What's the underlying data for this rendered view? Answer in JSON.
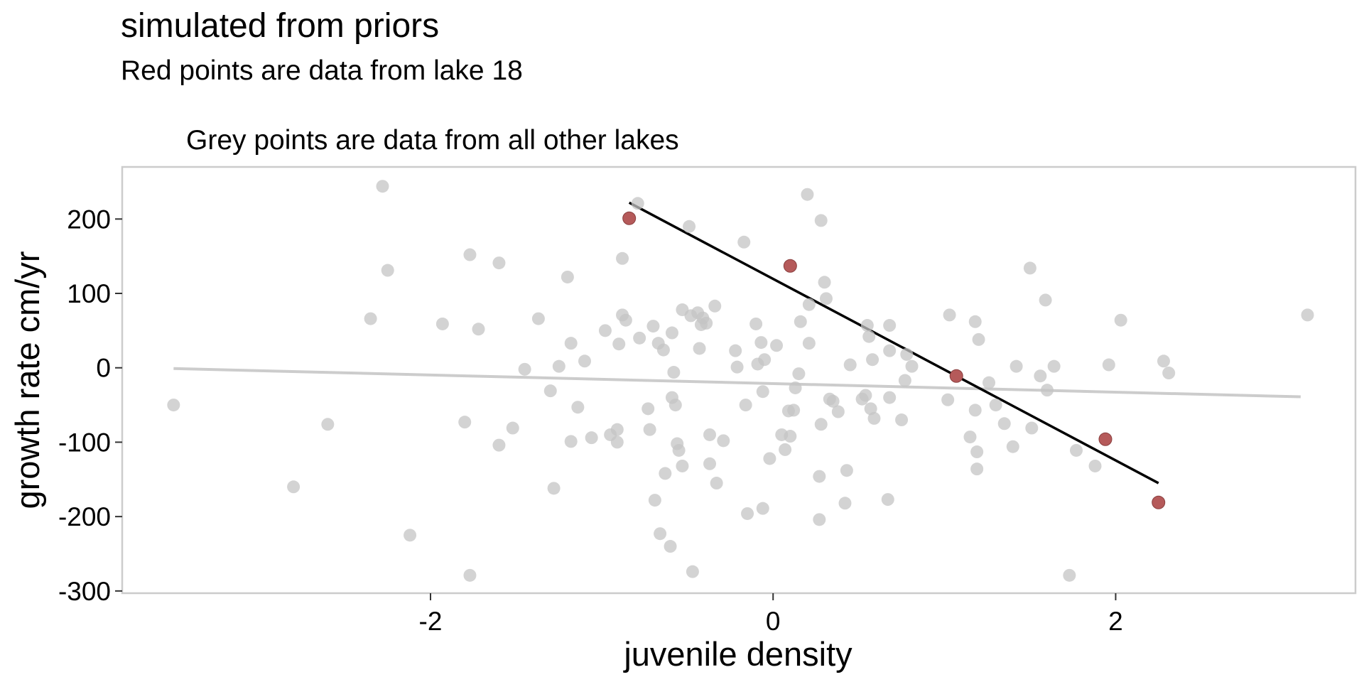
{
  "chart_data": {
    "type": "scatter",
    "title": "simulated from priors",
    "subtitle": "Red points are data from lake 18",
    "inner_title": "Grey points are data from all other lakes",
    "xlabel": "juvenile density",
    "ylabel": "growth rate cm/yr",
    "xlim": [
      -3.8,
      3.4
    ],
    "ylim": [
      -303,
      270
    ],
    "x_ticks": [
      -2,
      0,
      2
    ],
    "x_tick_labels": [
      "-2",
      "0",
      "2"
    ],
    "y_ticks": [
      -300,
      -200,
      -100,
      0,
      100,
      200
    ],
    "y_tick_labels": [
      "-300",
      "-200",
      "-100",
      "0",
      "100",
      "200"
    ],
    "grid": false,
    "legend": "none",
    "colors": {
      "grey_points": "#c4c4c4",
      "red_points": "#b55a5a",
      "lake18_line": "#000000",
      "other_line": "#cccccc",
      "frame": "#cccccc"
    },
    "series": [
      {
        "role": "other lakes",
        "points": [
          [
            -3.5,
            -50
          ],
          [
            -2.8,
            -160
          ],
          [
            -2.6,
            -76
          ],
          [
            -2.35,
            66
          ],
          [
            -2.25,
            131
          ],
          [
            -2.28,
            244
          ],
          [
            -2.12,
            -225
          ],
          [
            -1.93,
            59
          ],
          [
            -1.8,
            -73
          ],
          [
            -1.77,
            152
          ],
          [
            -1.77,
            -279
          ],
          [
            -1.72,
            52
          ],
          [
            -1.6,
            141
          ],
          [
            -1.6,
            -104
          ],
          [
            -1.52,
            -81
          ],
          [
            -1.45,
            -2
          ],
          [
            -1.37,
            66
          ],
          [
            -1.3,
            -31
          ],
          [
            -1.28,
            -162
          ],
          [
            -1.25,
            2
          ],
          [
            -1.2,
            122
          ],
          [
            -1.18,
            33
          ],
          [
            -1.18,
            -99
          ],
          [
            -1.14,
            -53
          ],
          [
            -1.1,
            9
          ],
          [
            -1.06,
            -94
          ],
          [
            -0.98,
            50
          ],
          [
            -0.95,
            -90
          ],
          [
            -0.91,
            -83
          ],
          [
            -0.91,
            -100
          ],
          [
            -0.9,
            32
          ],
          [
            -0.88,
            71
          ],
          [
            -0.88,
            147
          ],
          [
            -0.86,
            64
          ],
          [
            -0.79,
            221
          ],
          [
            -0.78,
            40
          ],
          [
            -0.73,
            -55
          ],
          [
            -0.72,
            -83
          ],
          [
            -0.7,
            56
          ],
          [
            -0.69,
            -178
          ],
          [
            -0.67,
            33
          ],
          [
            -0.66,
            -223
          ],
          [
            -0.64,
            24
          ],
          [
            -0.63,
            -142
          ],
          [
            -0.6,
            -240
          ],
          [
            -0.59,
            47
          ],
          [
            -0.59,
            -40
          ],
          [
            -0.58,
            -6
          ],
          [
            -0.57,
            -50
          ],
          [
            -0.56,
            -102
          ],
          [
            -0.55,
            -111
          ],
          [
            -0.53,
            -132
          ],
          [
            -0.53,
            78
          ],
          [
            -0.49,
            190
          ],
          [
            -0.48,
            70
          ],
          [
            -0.47,
            -274
          ],
          [
            -0.44,
            74
          ],
          [
            -0.43,
            26
          ],
          [
            -0.42,
            58
          ],
          [
            -0.41,
            67
          ],
          [
            -0.39,
            60
          ],
          [
            -0.37,
            -90
          ],
          [
            -0.37,
            -129
          ],
          [
            -0.34,
            83
          ],
          [
            -0.33,
            -155
          ],
          [
            -0.29,
            -98
          ],
          [
            -0.22,
            23
          ],
          [
            -0.21,
            1
          ],
          [
            -0.17,
            169
          ],
          [
            -0.16,
            -50
          ],
          [
            -0.15,
            -196
          ],
          [
            -0.1,
            59
          ],
          [
            -0.09,
            5
          ],
          [
            -0.07,
            34
          ],
          [
            -0.06,
            -189
          ],
          [
            -0.06,
            -32
          ],
          [
            -0.05,
            11
          ],
          [
            -0.02,
            -122
          ],
          [
            0.02,
            30
          ],
          [
            0.05,
            -90
          ],
          [
            0.07,
            -110
          ],
          [
            0.09,
            -58
          ],
          [
            0.1,
            -92
          ],
          [
            0.12,
            -57
          ],
          [
            0.13,
            -27
          ],
          [
            0.15,
            -8
          ],
          [
            0.16,
            62
          ],
          [
            0.2,
            233
          ],
          [
            0.21,
            33
          ],
          [
            0.21,
            85
          ],
          [
            0.27,
            -146
          ],
          [
            0.27,
            -204
          ],
          [
            0.28,
            198
          ],
          [
            0.28,
            -76
          ],
          [
            0.3,
            115
          ],
          [
            0.31,
            93
          ],
          [
            0.33,
            -42
          ],
          [
            0.35,
            -45
          ],
          [
            0.38,
            -59
          ],
          [
            0.42,
            -182
          ],
          [
            0.43,
            -138
          ],
          [
            0.45,
            4
          ],
          [
            0.52,
            -42
          ],
          [
            0.54,
            -37
          ],
          [
            0.55,
            57
          ],
          [
            0.56,
            42
          ],
          [
            0.57,
            -55
          ],
          [
            0.58,
            11
          ],
          [
            0.59,
            -68
          ],
          [
            0.67,
            -177
          ],
          [
            0.68,
            23
          ],
          [
            0.68,
            57
          ],
          [
            0.68,
            -40
          ],
          [
            0.75,
            -70
          ],
          [
            0.77,
            -17
          ],
          [
            0.78,
            18
          ],
          [
            0.81,
            2
          ],
          [
            1.02,
            -43
          ],
          [
            1.03,
            71
          ],
          [
            1.15,
            -93
          ],
          [
            1.18,
            62
          ],
          [
            1.18,
            -57
          ],
          [
            1.19,
            -113
          ],
          [
            1.19,
            -136
          ],
          [
            1.2,
            38
          ],
          [
            1.26,
            -20
          ],
          [
            1.3,
            -50
          ],
          [
            1.35,
            -75
          ],
          [
            1.4,
            -106
          ],
          [
            1.42,
            2
          ],
          [
            1.5,
            134
          ],
          [
            1.51,
            -81
          ],
          [
            1.56,
            -11
          ],
          [
            1.59,
            91
          ],
          [
            1.6,
            -30
          ],
          [
            1.64,
            2
          ],
          [
            1.73,
            -279
          ],
          [
            1.77,
            -111
          ],
          [
            1.88,
            -132
          ],
          [
            1.96,
            4
          ],
          [
            2.03,
            64
          ],
          [
            2.28,
            9
          ],
          [
            2.31,
            -7
          ],
          [
            3.12,
            71
          ]
        ]
      },
      {
        "role": "lake 18",
        "points": [
          [
            -0.84,
            201
          ],
          [
            0.1,
            137
          ],
          [
            1.07,
            -11
          ],
          [
            1.94,
            -96
          ],
          [
            2.25,
            -181
          ]
        ]
      }
    ],
    "fit_lines": [
      {
        "role": "lake 18 fit",
        "x": [
          -0.84,
          2.25
        ],
        "y": [
          222,
          -155
        ]
      },
      {
        "role": "other lakes fit",
        "x": [
          -3.5,
          3.08
        ],
        "y": [
          -1,
          -39
        ]
      }
    ]
  }
}
